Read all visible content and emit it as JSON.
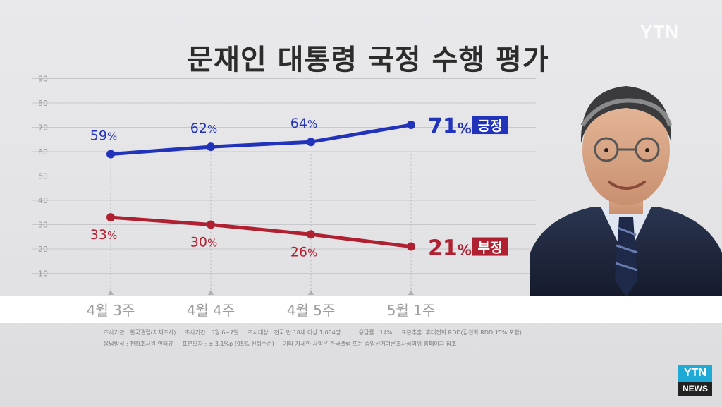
{
  "title": "문재인 대통령 국정 수행 평가",
  "watermark": "YTN",
  "badge": {
    "top": "YTN",
    "bottom": "NEWS"
  },
  "footnote": {
    "line1": "조사기관 : 한국갤럽(자체조사)     조사기간 : 5월 6~7일     조사대상 : 전국 만 18세 이상 1,004명          응답률 : 14%     표본추출: 휴대전화 RDD(집전화 RDD 15% 포함)",
    "line2": "응답방식 : 전화조사원 인터뷰     표본오차 : ± 3.1%p (95% 신뢰수준)     기타 자세한 사항은 한국갤럽 또는 중앙선거여론조사심의위 홈페이지 참조"
  },
  "colors": {
    "positive": "#2233bb",
    "negative": "#b02030",
    "grid": "#c8c8cc",
    "axis_text": "#9a9a9a"
  },
  "chart_data": {
    "type": "line",
    "title": "문재인 대통령 국정 수행 평가",
    "categories": [
      "4월 3주",
      "4월 4주",
      "4월 5주",
      "5월 1주"
    ],
    "ylim": [
      0,
      90
    ],
    "yticks": [
      10,
      20,
      30,
      40,
      50,
      60,
      70,
      80,
      90
    ],
    "grid": true,
    "series": [
      {
        "name": "긍정",
        "values": [
          59,
          62,
          64,
          71
        ],
        "labels": [
          "59",
          "62",
          "64",
          "71"
        ]
      },
      {
        "name": "부정",
        "values": [
          33,
          30,
          26,
          21
        ],
        "labels": [
          "33",
          "30",
          "26",
          "21"
        ]
      }
    ],
    "unit": "%"
  }
}
